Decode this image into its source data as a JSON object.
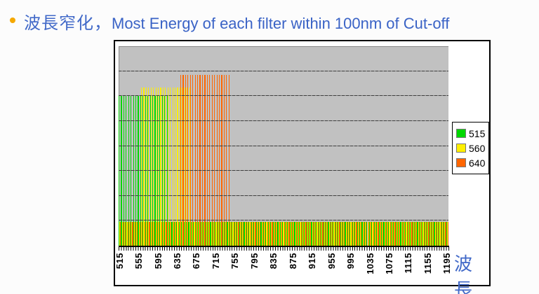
{
  "title": {
    "bullet_glyph": "",
    "cjk": "波長窄化，",
    "en": "Most Energy of each filter within 100nm of Cut-off"
  },
  "colors": {
    "title_blue": "#3a63c6",
    "bullet_orange": "#f5a800",
    "plot_background": "#c1c1c1",
    "gridline": "#3f3f3f",
    "series_green": "#00d800",
    "series_yellow": "#ffef00",
    "series_orange": "#ff6600"
  },
  "chart_data": {
    "type": "bar",
    "title": "",
    "xlabel": "波長",
    "ylabel": "",
    "x_start": 515,
    "x_end": 1195,
    "x_step": 5,
    "x_tick_labels": [
      "515",
      "555",
      "595",
      "635",
      "675",
      "715",
      "755",
      "795",
      "835",
      "875",
      "915",
      "955",
      "995",
      "1035",
      "1075",
      "1115",
      "1155",
      "1195"
    ],
    "ylim": [
      0,
      8
    ],
    "gridline_interval": 1,
    "grid": true,
    "y_tick_labels_visible": false,
    "legend_position": "right",
    "bar_layout": "clustered-3-series-per-5nm-category",
    "series": [
      {
        "name": "515",
        "color": "#00d800",
        "peak_range": [
          515,
          615
        ],
        "peak_value": 6.0,
        "baseline_value": 0.95
      },
      {
        "name": "560",
        "color": "#ffef00",
        "peak_range": [
          560,
          660
        ],
        "peak_value": 6.35,
        "baseline_value": 0.95
      },
      {
        "name": "640",
        "color": "#ff6600",
        "peak_range": [
          640,
          740
        ],
        "peak_value": 6.85,
        "baseline_value": 0.95
      }
    ]
  }
}
